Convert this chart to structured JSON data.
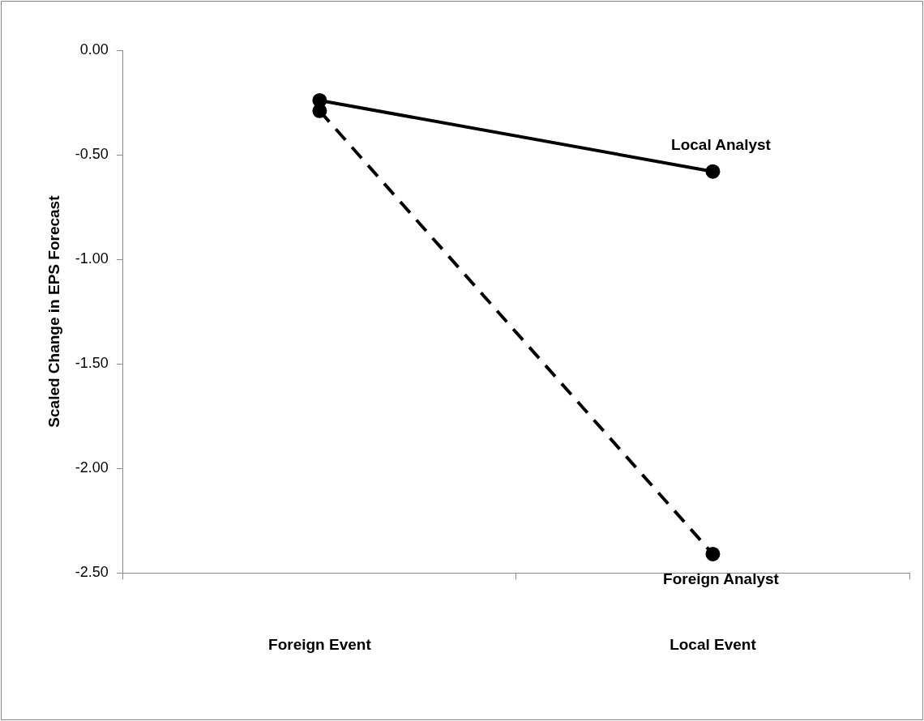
{
  "chart_data": {
    "type": "line",
    "ylabel": "Scaled Change in EPS Forecast",
    "categories": [
      "Foreign Event",
      "Local Event"
    ],
    "series": [
      {
        "name": "Local Analyst",
        "color": "#000000",
        "line_style": "solid",
        "values": [
          -0.24,
          -0.58
        ]
      },
      {
        "name": "Foreign Analyst",
        "color": "#000000",
        "line_style": "dashed",
        "values": [
          -0.29,
          -2.41
        ]
      }
    ],
    "ylim": [
      -2.5,
      0
    ],
    "yticks": [
      {
        "value": -2.5,
        "label": "-2.50"
      },
      {
        "value": -2,
        "label": "-2.00"
      },
      {
        "value": -1.5,
        "label": "-1.50"
      },
      {
        "value": -1,
        "label": "-1.00"
      },
      {
        "value": -0.5,
        "label": "-0.50"
      },
      {
        "value": 0,
        "label": "0.00"
      }
    ],
    "grid": false,
    "legend": false,
    "marker": "circle"
  }
}
